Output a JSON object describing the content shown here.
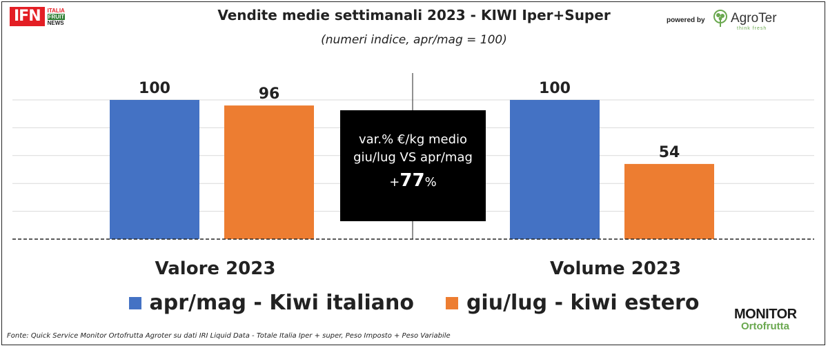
{
  "header": {
    "title": "Vendite medie settimanali 2023 - KIWI Iper+Super",
    "subtitle": "(numeri indice, apr/mag = 100)",
    "ifn_logo": "IFN",
    "ifn_lines": [
      "ITALIA",
      "FRUIT",
      "NEWS"
    ],
    "powered_by": "powered by",
    "agroter_name": "AgroTer",
    "agroter_tagline": "think fresh"
  },
  "callout": {
    "line1": "var.% €/kg medio",
    "line2": "giu/lug VS apr/mag",
    "value_prefix": "+",
    "value": "77",
    "value_suffix": "%"
  },
  "footer": {
    "source": "Fonte: Quick Service Monitor Ortofrutta Agroter su dati IRI Liquid Data - Totale Italia Iper + super, Peso Imposto + Peso Variabile",
    "monitor_line1": "MONITOR",
    "monitor_line2": "Ortofrutta"
  },
  "chart_data": {
    "type": "bar",
    "categories": [
      "Valore 2023",
      "Volume 2023"
    ],
    "series": [
      {
        "name": "apr/mag - Kiwi italiano",
        "values": [
          100,
          100
        ],
        "color": "#4472c4"
      },
      {
        "name": "giu/lug - kiwi estero",
        "values": [
          96,
          54
        ],
        "color": "#ed7d31"
      }
    ],
    "ylim": [
      0,
      100
    ],
    "grid": true,
    "legend_position": "bottom"
  }
}
